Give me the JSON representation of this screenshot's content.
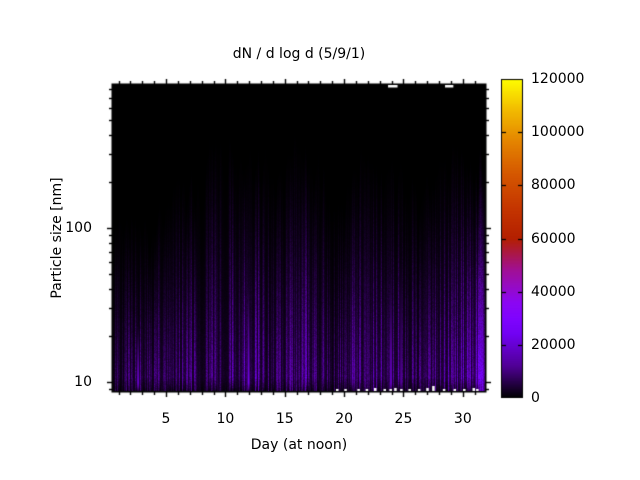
{
  "title": "dN / d log d (5/9/1)",
  "x_axis": {
    "label": "Day (at noon)",
    "tick_labels": [
      "5",
      "10",
      "15",
      "20",
      "25",
      "30"
    ]
  },
  "y_axis": {
    "label": "Particle size [nm]",
    "tick_labels": [
      "10",
      "100"
    ]
  },
  "colorbar": {
    "tick_labels": [
      "0",
      "20000",
      "40000",
      "60000",
      "80000",
      "100000",
      "120000"
    ]
  },
  "chart_data": {
    "type": "heatmap",
    "title": "dN / d log d (5/9/1)",
    "xlabel": "Day (at noon)",
    "ylabel": "Particle size [nm]",
    "x_range": [
      0.45,
      31.95
    ],
    "y_range": [
      8.6,
      860
    ],
    "y_scale": "log",
    "grid": false,
    "x_major_ticks": [
      5,
      10,
      15,
      20,
      25,
      30
    ],
    "x_minor_tick_step": 1,
    "y_major_ticks": [
      10,
      100
    ],
    "colorbar_range": [
      0,
      120000
    ],
    "colorbar_tick_values": [
      0,
      20000,
      40000,
      60000,
      80000,
      100000,
      120000
    ],
    "palette_name": "pm3d-black-purple-red-yellow",
    "palette_stops": [
      [
        0.0,
        "#000000"
      ],
      [
        0.1,
        "#510096"
      ],
      [
        0.2,
        "#7202f3"
      ],
      [
        0.25,
        "#8004ff"
      ],
      [
        0.3,
        "#8c07f3"
      ],
      [
        0.4,
        "#a11096"
      ],
      [
        0.5,
        "#b42000"
      ],
      [
        0.6,
        "#c63700"
      ],
      [
        0.7,
        "#d55700"
      ],
      [
        0.8,
        "#e48300"
      ],
      [
        0.9,
        "#f2ba00"
      ],
      [
        1.0,
        "#ffff00"
      ]
    ],
    "days": [
      1,
      2,
      3,
      4,
      5,
      6,
      7,
      8,
      9,
      10,
      11,
      12,
      13,
      14,
      15,
      16,
      17,
      18,
      19,
      20,
      21,
      22,
      23,
      24,
      25,
      26,
      27,
      28,
      29,
      30,
      31
    ],
    "envelope_top_nm": [
      130,
      115,
      108,
      95,
      125,
      175,
      205,
      212,
      360,
      305,
      286,
      300,
      340,
      230,
      210,
      380,
      275,
      245,
      175,
      127,
      245,
      320,
      212,
      246,
      227,
      166,
      175,
      275,
      315,
      286,
      230
    ],
    "peak_dndlogd": [
      4500,
      5500,
      8000,
      6000,
      6500,
      7000,
      8000,
      7500,
      9000,
      9500,
      11000,
      13000,
      9000,
      6000,
      8000,
      9500,
      8500,
      7500,
      5500,
      7000,
      10000,
      10000,
      9500,
      12000,
      9000,
      6500,
      7000,
      10500,
      11500,
      10500,
      12000
    ],
    "nucleation_events": [
      {
        "day": 2.65,
        "peak": 24000,
        "top_nm": 28
      },
      {
        "day": 11.95,
        "peak": 26000,
        "top_nm": 60
      },
      {
        "day": 16.75,
        "peak": 16000,
        "top_nm": 170
      },
      {
        "day": 20.7,
        "peak": 13000,
        "top_nm": 200
      },
      {
        "day": 23.95,
        "peak": 22000,
        "top_nm": 80
      },
      {
        "day": 24.8,
        "peak": 15000,
        "top_nm": 90
      },
      {
        "day": 31.15,
        "peak": 20000,
        "top_nm": 120
      }
    ],
    "data_gaps": {
      "top_edge_day_spans": [
        [
          23.7,
          24.5
        ],
        [
          28.5,
          29.2
        ]
      ],
      "bottom_edge_specks": [
        [
          19.4,
          2
        ],
        [
          20.1,
          2
        ],
        [
          21.2,
          2
        ],
        [
          21.9,
          2
        ],
        [
          22.6,
          3
        ],
        [
          23.4,
          2
        ],
        [
          23.9,
          2
        ],
        [
          24.3,
          3
        ],
        [
          24.8,
          2
        ],
        [
          25.5,
          2
        ],
        [
          26.3,
          2
        ],
        [
          27.0,
          3
        ],
        [
          27.5,
          5
        ],
        [
          28.4,
          2
        ],
        [
          29.3,
          2
        ],
        [
          30.1,
          2
        ],
        [
          30.9,
          3
        ],
        [
          31.2,
          2
        ]
      ]
    }
  }
}
